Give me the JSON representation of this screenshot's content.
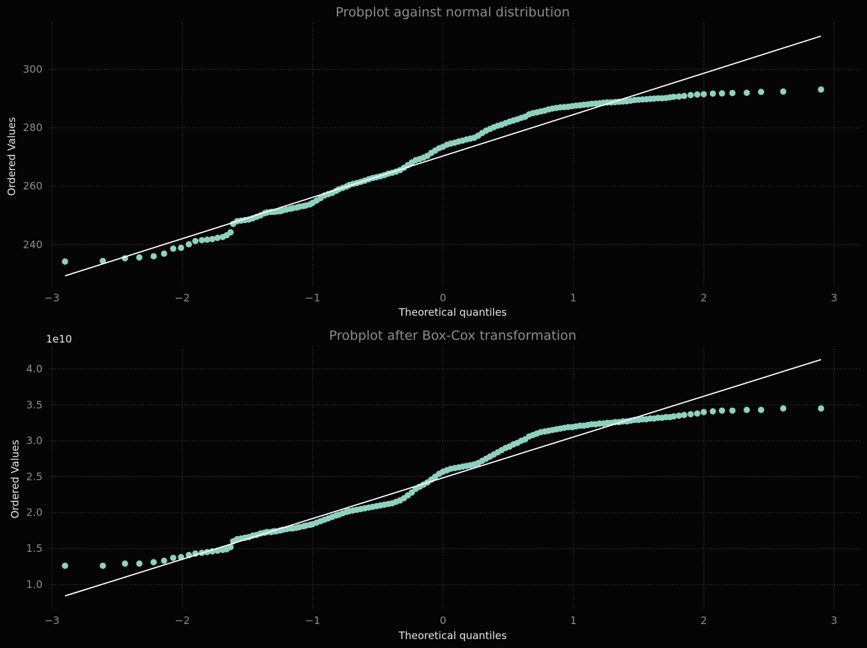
{
  "colors": {
    "background": "#050505",
    "grid": "#3a3a3a",
    "axis_text": "#8c8c8c",
    "label_text": "#e6e6e6",
    "title_text": "#8c8c8c",
    "points": "#8ed1c1",
    "fit_line": "#ffffff"
  },
  "chart_data": [
    {
      "type": "scatter",
      "title": "Probplot against normal distribution",
      "xlabel": "Theoretical quantiles",
      "ylabel": "Ordered Values",
      "offset_label": "",
      "grid": true,
      "xlim": [
        -3.02,
        3.2
      ],
      "ylim": [
        225.5,
        316
      ],
      "xticks": [
        -3,
        -2,
        -1,
        0,
        1,
        2,
        3
      ],
      "xtick_labels": [
        "−3",
        "−2",
        "−1",
        "0",
        "1",
        "2",
        "3"
      ],
      "yticks": [
        240,
        260,
        280,
        300
      ],
      "ytick_labels": [
        "240",
        "260",
        "280",
        "300"
      ],
      "fit_line": {
        "x": [
          -2.9,
          2.9
        ],
        "y": [
          229.3,
          311.4
        ]
      },
      "series": [
        {
          "points_x": [
            -2.9,
            -2.61,
            -2.44,
            -2.33,
            -2.22,
            -2.14,
            -2.07,
            -2.01,
            -1.95,
            -1.9,
            -1.85,
            -1.81,
            -1.77,
            -1.73,
            -1.69,
            -1.66,
            -1.63,
            -1.61,
            -1.58,
            -1.55,
            -1.52,
            -1.49,
            -1.46,
            -1.43,
            -1.4,
            -1.37,
            -1.35,
            -1.32,
            -1.3,
            -1.28,
            -1.25,
            -1.23,
            -1.2,
            -1.17,
            -1.15,
            -1.12,
            -1.1,
            -1.07,
            -1.05,
            -1.02,
            -1.0,
            -0.97,
            -0.94,
            -0.91,
            -0.88,
            -0.85,
            -0.82,
            -0.8,
            -0.77,
            -0.74,
            -0.72,
            -0.69,
            -0.66,
            -0.63,
            -0.6,
            -0.57,
            -0.54,
            -0.51,
            -0.48,
            -0.45,
            -0.42,
            -0.39,
            -0.36,
            -0.33,
            -0.3,
            -0.27,
            -0.24,
            -0.21,
            -0.18,
            -0.15,
            -0.12,
            -0.09,
            -0.06,
            -0.03,
            0.0,
            0.03,
            0.06,
            0.09,
            0.12,
            0.15,
            0.18,
            0.21,
            0.24,
            0.27,
            0.3,
            0.33,
            0.36,
            0.39,
            0.42,
            0.45,
            0.48,
            0.51,
            0.54,
            0.57,
            0.6,
            0.63,
            0.66,
            0.69,
            0.72,
            0.75,
            0.78,
            0.81,
            0.84,
            0.87,
            0.9,
            0.93,
            0.96,
            0.99,
            1.02,
            1.05,
            1.08,
            1.11,
            1.14,
            1.17,
            1.2,
            1.23,
            1.26,
            1.29,
            1.32,
            1.35,
            1.38,
            1.41,
            1.44,
            1.47,
            1.5,
            1.53,
            1.56,
            1.59,
            1.62,
            1.65,
            1.68,
            1.71,
            1.74,
            1.77,
            1.81,
            1.85,
            1.9,
            1.95,
            2.0,
            2.07,
            2.14,
            2.22,
            2.33,
            2.44,
            2.61,
            2.9
          ],
          "points_y": [
            234.2,
            234.4,
            235.3,
            235.6,
            236.0,
            236.9,
            238.6,
            238.9,
            240.1,
            241.2,
            241.5,
            241.7,
            241.9,
            242.3,
            242.6,
            243.2,
            244.2,
            247.1,
            248.0,
            248.2,
            248.4,
            248.6,
            249.0,
            249.5,
            250.0,
            250.7,
            251.0,
            251.2,
            251.2,
            251.3,
            251.4,
            251.7,
            252.0,
            252.3,
            252.5,
            252.7,
            253.0,
            253.2,
            253.4,
            253.8,
            254.3,
            255.1,
            255.9,
            256.8,
            257.3,
            257.7,
            258.4,
            258.9,
            259.4,
            259.9,
            260.4,
            260.8,
            261.1,
            261.5,
            261.9,
            262.4,
            262.8,
            263.1,
            263.4,
            263.8,
            264.3,
            264.6,
            265.0,
            265.5,
            266.3,
            267.2,
            268.1,
            268.9,
            269.3,
            269.8,
            270.4,
            271.4,
            272.2,
            273.0,
            273.5,
            274.2,
            274.6,
            274.9,
            275.3,
            275.6,
            276.0,
            276.3,
            276.6,
            277.3,
            278.2,
            279.0,
            279.6,
            280.2,
            280.7,
            281.1,
            281.6,
            282.1,
            282.5,
            282.9,
            283.4,
            283.8,
            284.6,
            285.0,
            285.3,
            285.6,
            285.9,
            286.3,
            286.6,
            286.8,
            287.0,
            287.1,
            287.2,
            287.4,
            287.6,
            287.7,
            287.9,
            288.0,
            288.2,
            288.3,
            288.4,
            288.6,
            288.7,
            288.7,
            288.8,
            288.9,
            289.0,
            289.1,
            289.3,
            289.5,
            289.6,
            289.7,
            289.8,
            289.9,
            290.0,
            290.1,
            290.1,
            290.2,
            290.4,
            290.6,
            290.7,
            290.9,
            291.2,
            291.4,
            291.5,
            291.7,
            291.8,
            291.9,
            292.0,
            292.3,
            292.4,
            293.1,
            294.1
          ]
        }
      ]
    },
    {
      "type": "scatter",
      "title": "Probplot after Box-Cox transformation",
      "xlabel": "Theoretical quantiles",
      "ylabel": "Ordered Values",
      "offset_label": "1e10",
      "grid": true,
      "xlim": [
        -3.02,
        3.2
      ],
      "ylim": [
        0.65,
        4.32
      ],
      "xticks": [
        -3,
        -2,
        -1,
        0,
        1,
        2,
        3
      ],
      "xtick_labels": [
        "−3",
        "−2",
        "−1",
        "0",
        "1",
        "2",
        "3"
      ],
      "yticks": [
        1.0,
        1.5,
        2.0,
        2.5,
        3.0,
        3.5,
        4.0
      ],
      "ytick_labels": [
        "1.0",
        "1.5",
        "2.0",
        "2.5",
        "3.0",
        "3.5",
        "4.0"
      ],
      "fit_line": {
        "x": [
          -2.9,
          2.9
        ],
        "y": [
          0.84,
          4.13
        ]
      },
      "series": [
        {
          "points_x": [
            -2.9,
            -2.61,
            -2.44,
            -2.33,
            -2.22,
            -2.14,
            -2.07,
            -2.01,
            -1.95,
            -1.9,
            -1.85,
            -1.81,
            -1.77,
            -1.73,
            -1.69,
            -1.66,
            -1.63,
            -1.61,
            -1.58,
            -1.55,
            -1.52,
            -1.49,
            -1.46,
            -1.43,
            -1.4,
            -1.37,
            -1.35,
            -1.32,
            -1.3,
            -1.28,
            -1.25,
            -1.23,
            -1.2,
            -1.17,
            -1.15,
            -1.12,
            -1.1,
            -1.07,
            -1.05,
            -1.02,
            -1.0,
            -0.97,
            -0.94,
            -0.91,
            -0.88,
            -0.85,
            -0.82,
            -0.8,
            -0.77,
            -0.74,
            -0.72,
            -0.69,
            -0.66,
            -0.63,
            -0.6,
            -0.57,
            -0.54,
            -0.51,
            -0.48,
            -0.45,
            -0.42,
            -0.39,
            -0.36,
            -0.33,
            -0.3,
            -0.27,
            -0.24,
            -0.21,
            -0.18,
            -0.15,
            -0.12,
            -0.09,
            -0.06,
            -0.03,
            0.0,
            0.03,
            0.06,
            0.09,
            0.12,
            0.15,
            0.18,
            0.21,
            0.24,
            0.27,
            0.3,
            0.33,
            0.36,
            0.39,
            0.42,
            0.45,
            0.48,
            0.51,
            0.54,
            0.57,
            0.6,
            0.63,
            0.66,
            0.69,
            0.72,
            0.75,
            0.78,
            0.81,
            0.84,
            0.87,
            0.9,
            0.93,
            0.96,
            0.99,
            1.02,
            1.05,
            1.08,
            1.11,
            1.14,
            1.17,
            1.2,
            1.23,
            1.26,
            1.29,
            1.32,
            1.35,
            1.38,
            1.41,
            1.44,
            1.47,
            1.5,
            1.53,
            1.56,
            1.59,
            1.62,
            1.65,
            1.68,
            1.71,
            1.74,
            1.77,
            1.81,
            1.85,
            1.9,
            1.95,
            2.0,
            2.07,
            2.14,
            2.22,
            2.33,
            2.44,
            2.61,
            2.9
          ],
          "points_y": [
            1.26,
            1.26,
            1.29,
            1.29,
            1.31,
            1.33,
            1.37,
            1.38,
            1.41,
            1.43,
            1.44,
            1.45,
            1.46,
            1.47,
            1.48,
            1.49,
            1.52,
            1.6,
            1.63,
            1.64,
            1.65,
            1.66,
            1.68,
            1.69,
            1.71,
            1.72,
            1.73,
            1.73,
            1.74,
            1.74,
            1.75,
            1.76,
            1.77,
            1.78,
            1.78,
            1.79,
            1.8,
            1.81,
            1.82,
            1.83,
            1.84,
            1.86,
            1.88,
            1.9,
            1.92,
            1.94,
            1.96,
            1.97,
            1.99,
            2.01,
            2.02,
            2.03,
            2.04,
            2.05,
            2.06,
            2.07,
            2.08,
            2.09,
            2.1,
            2.11,
            2.12,
            2.13,
            2.15,
            2.17,
            2.2,
            2.24,
            2.28,
            2.33,
            2.36,
            2.39,
            2.42,
            2.46,
            2.5,
            2.54,
            2.57,
            2.59,
            2.61,
            2.62,
            2.63,
            2.64,
            2.65,
            2.66,
            2.67,
            2.69,
            2.72,
            2.75,
            2.78,
            2.81,
            2.84,
            2.87,
            2.9,
            2.92,
            2.95,
            2.97,
            3.0,
            3.02,
            3.06,
            3.08,
            3.1,
            3.12,
            3.13,
            3.14,
            3.15,
            3.16,
            3.17,
            3.18,
            3.19,
            3.19,
            3.2,
            3.21,
            3.21,
            3.22,
            3.23,
            3.23,
            3.24,
            3.24,
            3.25,
            3.25,
            3.26,
            3.26,
            3.27,
            3.27,
            3.28,
            3.29,
            3.29,
            3.3,
            3.3,
            3.31,
            3.31,
            3.32,
            3.32,
            3.33,
            3.33,
            3.34,
            3.35,
            3.36,
            3.37,
            3.38,
            3.4,
            3.41,
            3.42,
            3.42,
            3.43,
            3.43,
            3.45,
            3.45,
            3.48,
            3.54
          ]
        }
      ]
    }
  ]
}
